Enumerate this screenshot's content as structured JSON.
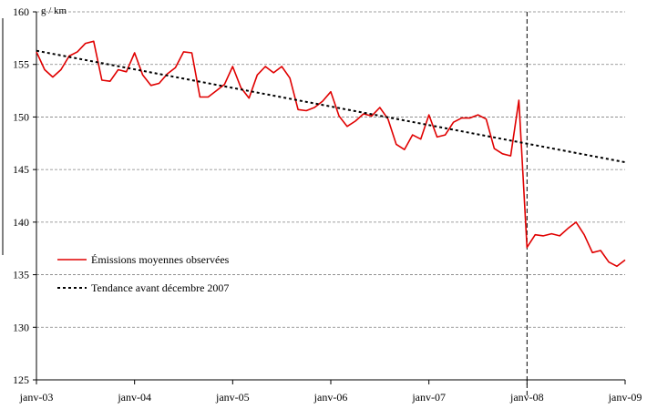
{
  "chart_data": {
    "type": "line",
    "title": "",
    "xlabel": "",
    "ylabel": "g / km",
    "ylim": [
      125,
      160
    ],
    "yticks": [
      125,
      130,
      135,
      140,
      145,
      150,
      155,
      160
    ],
    "ytick_labels": [
      "125",
      "130",
      "135",
      "140",
      "145",
      "150",
      "155",
      "160"
    ],
    "xlim": [
      "2003-01",
      "2009-01"
    ],
    "xtick_labels": [
      "janv-03",
      "janv-04",
      "janv-05",
      "janv-06",
      "janv-07",
      "janv-08",
      "janv-09"
    ],
    "grid": "horizontal dashed",
    "legend_position": "lower-left",
    "break_marker": "2008-01",
    "series": [
      {
        "name": "Émissions moyennes observées",
        "color": "#e00000",
        "style": "solid",
        "x": [
          "2003-01",
          "2003-02",
          "2003-03",
          "2003-04",
          "2003-05",
          "2003-06",
          "2003-07",
          "2003-08",
          "2003-09",
          "2003-10",
          "2003-11",
          "2003-12",
          "2004-01",
          "2004-02",
          "2004-03",
          "2004-04",
          "2004-05",
          "2004-06",
          "2004-07",
          "2004-08",
          "2004-09",
          "2004-10",
          "2004-11",
          "2004-12",
          "2005-01",
          "2005-02",
          "2005-03",
          "2005-04",
          "2005-05",
          "2005-06",
          "2005-07",
          "2005-08",
          "2005-09",
          "2005-10",
          "2005-11",
          "2005-12",
          "2006-01",
          "2006-02",
          "2006-03",
          "2006-04",
          "2006-05",
          "2006-06",
          "2006-07",
          "2006-08",
          "2006-09",
          "2006-10",
          "2006-11",
          "2006-12",
          "2007-01",
          "2007-02",
          "2007-03",
          "2007-04",
          "2007-05",
          "2007-06",
          "2007-07",
          "2007-08",
          "2007-09",
          "2007-10",
          "2007-11",
          "2007-12",
          "2008-01",
          "2008-02",
          "2008-03",
          "2008-04",
          "2008-05",
          "2008-06",
          "2008-07",
          "2008-08",
          "2008-09",
          "2008-10",
          "2008-11",
          "2008-12",
          "2009-01"
        ],
        "values": [
          156.2,
          154.5,
          153.8,
          154.5,
          155.8,
          156.2,
          157.0,
          157.2,
          153.5,
          153.4,
          154.5,
          154.3,
          156.1,
          154.0,
          153.0,
          153.2,
          154.1,
          154.7,
          156.2,
          156.1,
          151.9,
          151.9,
          152.5,
          153.1,
          154.8,
          152.8,
          151.8,
          154.0,
          154.8,
          154.2,
          154.8,
          153.7,
          150.7,
          150.6,
          150.9,
          151.5,
          152.4,
          150.1,
          149.1,
          149.6,
          150.3,
          150.1,
          150.9,
          149.8,
          147.4,
          146.9,
          148.3,
          147.9,
          150.2,
          148.1,
          148.3,
          149.5,
          149.9,
          149.9,
          150.2,
          149.8,
          147.0,
          146.5,
          146.3,
          151.6,
          137.6,
          138.8,
          138.7,
          138.9,
          138.7,
          139.4,
          140.0,
          138.8,
          137.1,
          137.3,
          136.2,
          135.8,
          136.4
        ]
      },
      {
        "name": "Tendance avant décembre 2007",
        "color": "#000000",
        "style": "dotted",
        "x": [
          "2003-01",
          "2009-01"
        ],
        "values": [
          156.3,
          145.7
        ]
      }
    ]
  }
}
